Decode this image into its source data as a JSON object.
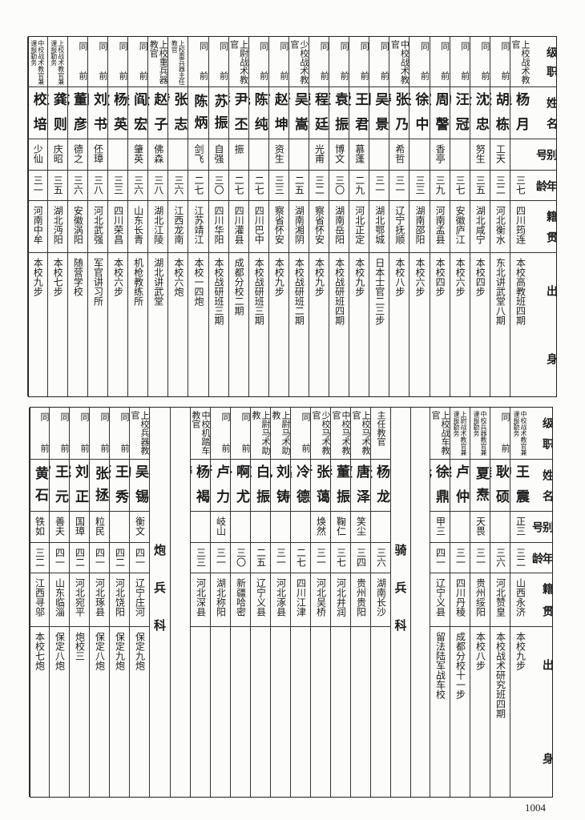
{
  "headers": [
    "级职",
    "姓名",
    "别号",
    "年龄",
    "籍贯",
    "出身"
  ],
  "top": {
    "people": [
      {
        "rank": "上校战术教官",
        "name": "杨月渔",
        "alias": "",
        "age": "三七",
        "native": "四川筠连",
        "origin": "本校高教班四期"
      },
      {
        "rank": "同前",
        "name": "胡栋辰",
        "alias": "工天",
        "age": "三二",
        "native": "河北衡水",
        "origin": "东北讲武堂八期"
      },
      {
        "rank": "同前",
        "name": "沈忠全",
        "alias": "努生",
        "age": "三五",
        "native": "湖北咸宁",
        "origin": "本校四步"
      },
      {
        "rank": "同前",
        "name": "汪冠勋",
        "alias": "",
        "age": "三七",
        "native": "安徽庐江",
        "origin": "本校六步"
      },
      {
        "rank": "同前",
        "name": "周謦室",
        "alias": "香亭",
        "age": "三九",
        "native": "河南孟县",
        "origin": "本校四步"
      },
      {
        "rank": "同前",
        "name": "徐中坚",
        "alias": "",
        "age": "三三",
        "native": "湖南邵阳",
        "origin": "本校六步"
      },
      {
        "rank": "中校战术教官",
        "name": "张乃涛",
        "alias": "希哲",
        "age": "三一",
        "native": "辽宁抚顺",
        "origin": "本校八步"
      },
      {
        "rank": "同前",
        "name": "吴景明",
        "alias": "",
        "age": "三一",
        "native": "湖北鄂城",
        "origin": "日本士官二三步"
      },
      {
        "rank": "同前",
        "name": "王君瑷",
        "alias": "慕蓬",
        "age": "二九",
        "native": "河北正定",
        "origin": "本校九步"
      },
      {
        "rank": "同前",
        "name": "袁振亚",
        "alias": "博文",
        "age": "三〇",
        "native": "湖南岳阳",
        "origin": "本校战研班四期"
      },
      {
        "rank": "同前",
        "name": "程廷荣",
        "alias": "光甫",
        "age": "三二",
        "native": "察省怀安",
        "origin": "本校九步"
      },
      {
        "rank": "少校战术教官",
        "name": "吴嵩严",
        "alias": "",
        "age": "二五",
        "native": "湖南湘阴",
        "origin": "本校战研班二期"
      },
      {
        "rank": "同前",
        "name": "赵坤广",
        "alias": "资生",
        "age": "三三",
        "native": "察省怀安",
        "origin": "本校九步"
      },
      {
        "rank": "同前",
        "name": "陈纯先",
        "alias": "",
        "age": "二七",
        "native": "四川巴中",
        "origin": "本校战研班三期"
      },
      {
        "rank": "上尉战术教官",
        "name": "尹丕彰",
        "alias": "振",
        "age": "二七",
        "native": "四川灌县",
        "origin": "成都分校二期"
      },
      {
        "rank": "同前",
        "name": "苏振",
        "alias": "自强",
        "age": "三〇",
        "native": "四川华阳",
        "origin": "本校战研班三期"
      },
      {
        "rank": "同前",
        "name": "陈炳",
        "alias": "剑飞",
        "age": "二七",
        "native": "江苏靖江",
        "origin": "本校一四炮"
      },
      {
        "rank": "上校重兵器主任教官",
        "name": "张志传",
        "alias": "",
        "age": "三六",
        "native": "江西龙南",
        "origin": "本校六炮"
      },
      {
        "rank": "上校重兵器教官",
        "name": "赵子云",
        "alias": "佛森",
        "age": "三八",
        "native": "湖北江陵",
        "origin": "湖北讲武堂"
      },
      {
        "rank": "同前",
        "name": "阎宏俊",
        "alias": "肇英",
        "age": "三六",
        "native": "山东长青",
        "origin": "机枪教练所"
      },
      {
        "rank": "同前",
        "name": "杨英敏",
        "alias": "",
        "age": "三三",
        "native": "四川荣昌",
        "origin": "本校六步"
      },
      {
        "rank": "同前",
        "name": "刘书知",
        "alias": "伾璋",
        "age": "三八",
        "native": "河北武强",
        "origin": "军官讲习所"
      },
      {
        "rank": "同前",
        "name": "董彦成",
        "alias": "德之",
        "age": "三六",
        "native": "安徽涡阳",
        "origin": "随营学校"
      },
      {
        "rank": "上校战术教官兼课报勤务",
        "name": "龚则仁",
        "alias": "庆昭",
        "age": "三五",
        "native": "湖北沔阳",
        "origin": "本校七步"
      },
      {
        "rank": "中校战术教官兼课报勤务",
        "name": "校培俊",
        "alias": "少仙",
        "age": "三一",
        "native": "河南中牟",
        "origin": "本校九步"
      }
    ]
  },
  "bottom": {
    "group_a": [
      {
        "rank": "中校战术教官兼课报勤务",
        "name": "王震中",
        "alias": "正三",
        "age": "三二",
        "native": "山西永济",
        "origin": "本校九步"
      },
      {
        "rank": "同前",
        "name": "耿硕雄",
        "alias": "",
        "age": "三六",
        "native": "河北赞皇",
        "origin": "本校战术研究班四期"
      },
      {
        "rank": "中校兵器教官兼课报勤务",
        "name": "夏焘",
        "alias": "天畏",
        "age": "三一",
        "native": "贵州绥阳",
        "origin": "本校八步"
      },
      {
        "rank": "上尉战术教官兼课报勤务",
        "name": "卢仲霖",
        "alias": "",
        "age": "三一",
        "native": "四川丹稜",
        "origin": "成都分校十一步"
      },
      {
        "rank": "上校战车教官",
        "name": "徐鼎元",
        "alias": "甲三",
        "age": "四一",
        "native": "辽宁义县",
        "origin": "留法陆军战车校"
      }
    ],
    "cavalry_label": "骑兵科",
    "group_b": [
      {
        "rank": "主任教官",
        "name": "杨龙天",
        "alias": "",
        "age": "三六",
        "native": "湖南长沙",
        "origin": ""
      },
      {
        "rank": "上校马术教官",
        "name": "唐泽堃",
        "alias": "笑尘",
        "age": "三四",
        "native": "贵州贵阳",
        "origin": ""
      },
      {
        "rank": "中校马术教官",
        "name": "董振华",
        "alias": "鞠仁",
        "age": "三七",
        "native": "河北井润",
        "origin": ""
      },
      {
        "rank": "少校马术教官",
        "name": "张蔼新",
        "alias": "焕然",
        "age": "三一",
        "native": "河北吴桥",
        "origin": ""
      },
      {
        "rank": "同前",
        "name": "冷德鑫",
        "alias": "",
        "age": "二七",
        "native": "四川江津",
        "origin": ""
      },
      {
        "rank": "上尉马术助教",
        "name": "刘铸九",
        "alias": "",
        "age": "三一",
        "native": "河北涿县",
        "origin": ""
      },
      {
        "rank": "上尉马术助教",
        "name": "白振东",
        "alias": "",
        "age": "二五",
        "native": "辽宁义县",
        "origin": ""
      },
      {
        "rank": "同前",
        "name": "啊尤朴",
        "alias": "",
        "age": "三〇",
        "native": "新疆哈密",
        "origin": ""
      },
      {
        "rank": "同前",
        "name": "卢力行",
        "alias": "岐山",
        "age": "三一",
        "native": "湖北称阳",
        "origin": ""
      },
      {
        "rank": "中校机踏车教官",
        "name": "杨褐涛",
        "alias": "",
        "age": "三三",
        "native": "河北深县",
        "origin": ""
      }
    ],
    "artillery_label": "炮兵科",
    "group_c": [
      {
        "rank": "上校兵器教官",
        "name": "吴锡钧",
        "alias": "衡文",
        "age": "四一",
        "native": "辽宁庄河",
        "origin": "保定九炮"
      },
      {
        "rank": "同前",
        "name": "王秀豪",
        "alias": "",
        "age": "四二",
        "native": "河北饶阳",
        "origin": "保定九炮"
      },
      {
        "rank": "同前",
        "name": "张拯",
        "alias": "粒民",
        "age": "四一",
        "native": "河北琢县",
        "origin": "保定八炮"
      },
      {
        "rank": "同前",
        "name": "刘正宪",
        "alias": "国璋",
        "age": "四二",
        "native": "河北宛平",
        "origin": "炮校三"
      },
      {
        "rank": "同前",
        "name": "王元宵",
        "alias": "善夫",
        "age": "四一",
        "native": "山东临淄",
        "origin": "保定八炮"
      },
      {
        "rank": "同前",
        "name": "黄石",
        "alias": "铁如",
        "age": "三二",
        "native": "江西寻邬",
        "origin": "本校七炮"
      }
    ]
  },
  "page_number": "1004"
}
